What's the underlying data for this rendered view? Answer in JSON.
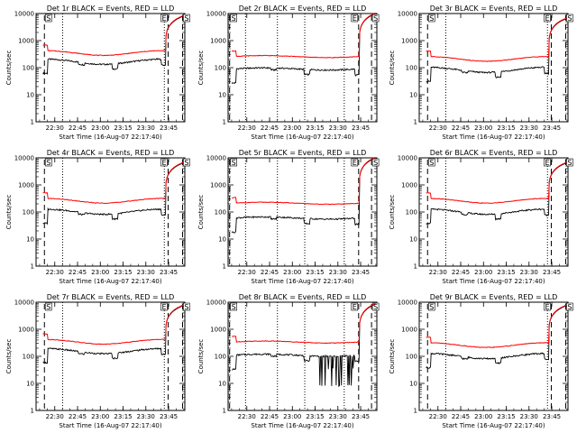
{
  "chart_data": {
    "type": "line",
    "layout": "3x3 grid",
    "ylim": [
      1,
      10000
    ],
    "yscale": "log",
    "ytick_labels": [
      "1",
      "10",
      "100",
      "1000",
      "10000"
    ],
    "xtick_labels": [
      "22:30",
      "22:45",
      "23:00",
      "23:15",
      "23:30",
      "23:45"
    ],
    "xtick_minutes": [
      12.33,
      27.33,
      42.33,
      57.33,
      72.33,
      87.33
    ],
    "x_range_minutes": [
      0,
      98
    ],
    "ylabel": "Counts/sec",
    "xlabel": "Start Time (16-Aug-07 22:17:40)",
    "series_colors": {
      "events": "#000000",
      "lld": "#ff0000"
    },
    "panels": [
      {
        "title": "Det 1r BLACK = Events, RED = LLD",
        "flags": [
          "S",
          "E",
          "S"
        ],
        "base": 170,
        "baseRed": 1.9,
        "dip": 1.0,
        "rise": 8000,
        "spikes": false
      },
      {
        "title": "Det 2r BLACK = Events, RED = LLD",
        "flags": [
          "S",
          "E",
          "S"
        ],
        "base": 90,
        "baseRed": 2.6,
        "dip": 0.5,
        "rise": 10000,
        "spikes": false
      },
      {
        "title": "Det 3r BLACK = Events, RED = LLD",
        "flags": [
          "S",
          "E",
          "S"
        ],
        "base": 85,
        "baseRed": 2.3,
        "dip": 0.9,
        "rise": 6500,
        "spikes": false
      },
      {
        "title": "Det 4r BLACK = Events, RED = LLD",
        "flags": [
          "S",
          "E",
          "S"
        ],
        "base": 105,
        "baseRed": 2.3,
        "dip": 1.0,
        "rise": 6500,
        "spikes": false
      },
      {
        "title": "Det 5r BLACK = Events, RED = LLD",
        "flags": [
          "S",
          "E",
          "S"
        ],
        "base": 60,
        "baseRed": 3.2,
        "dip": 0.5,
        "rise": 10000,
        "spikes": false
      },
      {
        "title": "Det 6r BLACK = Events, RED = LLD",
        "flags": [
          "S",
          "E",
          "S"
        ],
        "base": 105,
        "baseRed": 2.3,
        "dip": 1.0,
        "rise": 6500,
        "spikes": false
      },
      {
        "title": "Det 7r BLACK = Events, RED = LLD",
        "flags": [
          "S",
          "E",
          "S"
        ],
        "base": 160,
        "baseRed": 2.0,
        "dip": 1.0,
        "rise": 7500,
        "spikes": false
      },
      {
        "title": "Det 8r BLACK = Events, RED = LLD",
        "flags": [
          "S",
          "E",
          "S"
        ],
        "base": 110,
        "baseRed": 2.8,
        "dip": 0.5,
        "rise": 8500,
        "spikes": true
      },
      {
        "title": "Det 9r BLACK = Events, RED = LLD",
        "flags": [
          "S",
          "E",
          "S"
        ],
        "base": 105,
        "baseRed": 2.3,
        "dip": 1.0,
        "rise": 7500,
        "spikes": false
      }
    ],
    "dashed_lines_minutes": [
      5.5,
      87.0,
      96.5
    ],
    "dotted_lines_minutes": [
      17.5,
      84.5
    ],
    "dashed_lines_minutes_col2": [
      1.0,
      86.0,
      94.5
    ],
    "dotted_lines_minutes_col2": [
      11.5,
      32.5,
      50.5,
      76.5
    ]
  }
}
